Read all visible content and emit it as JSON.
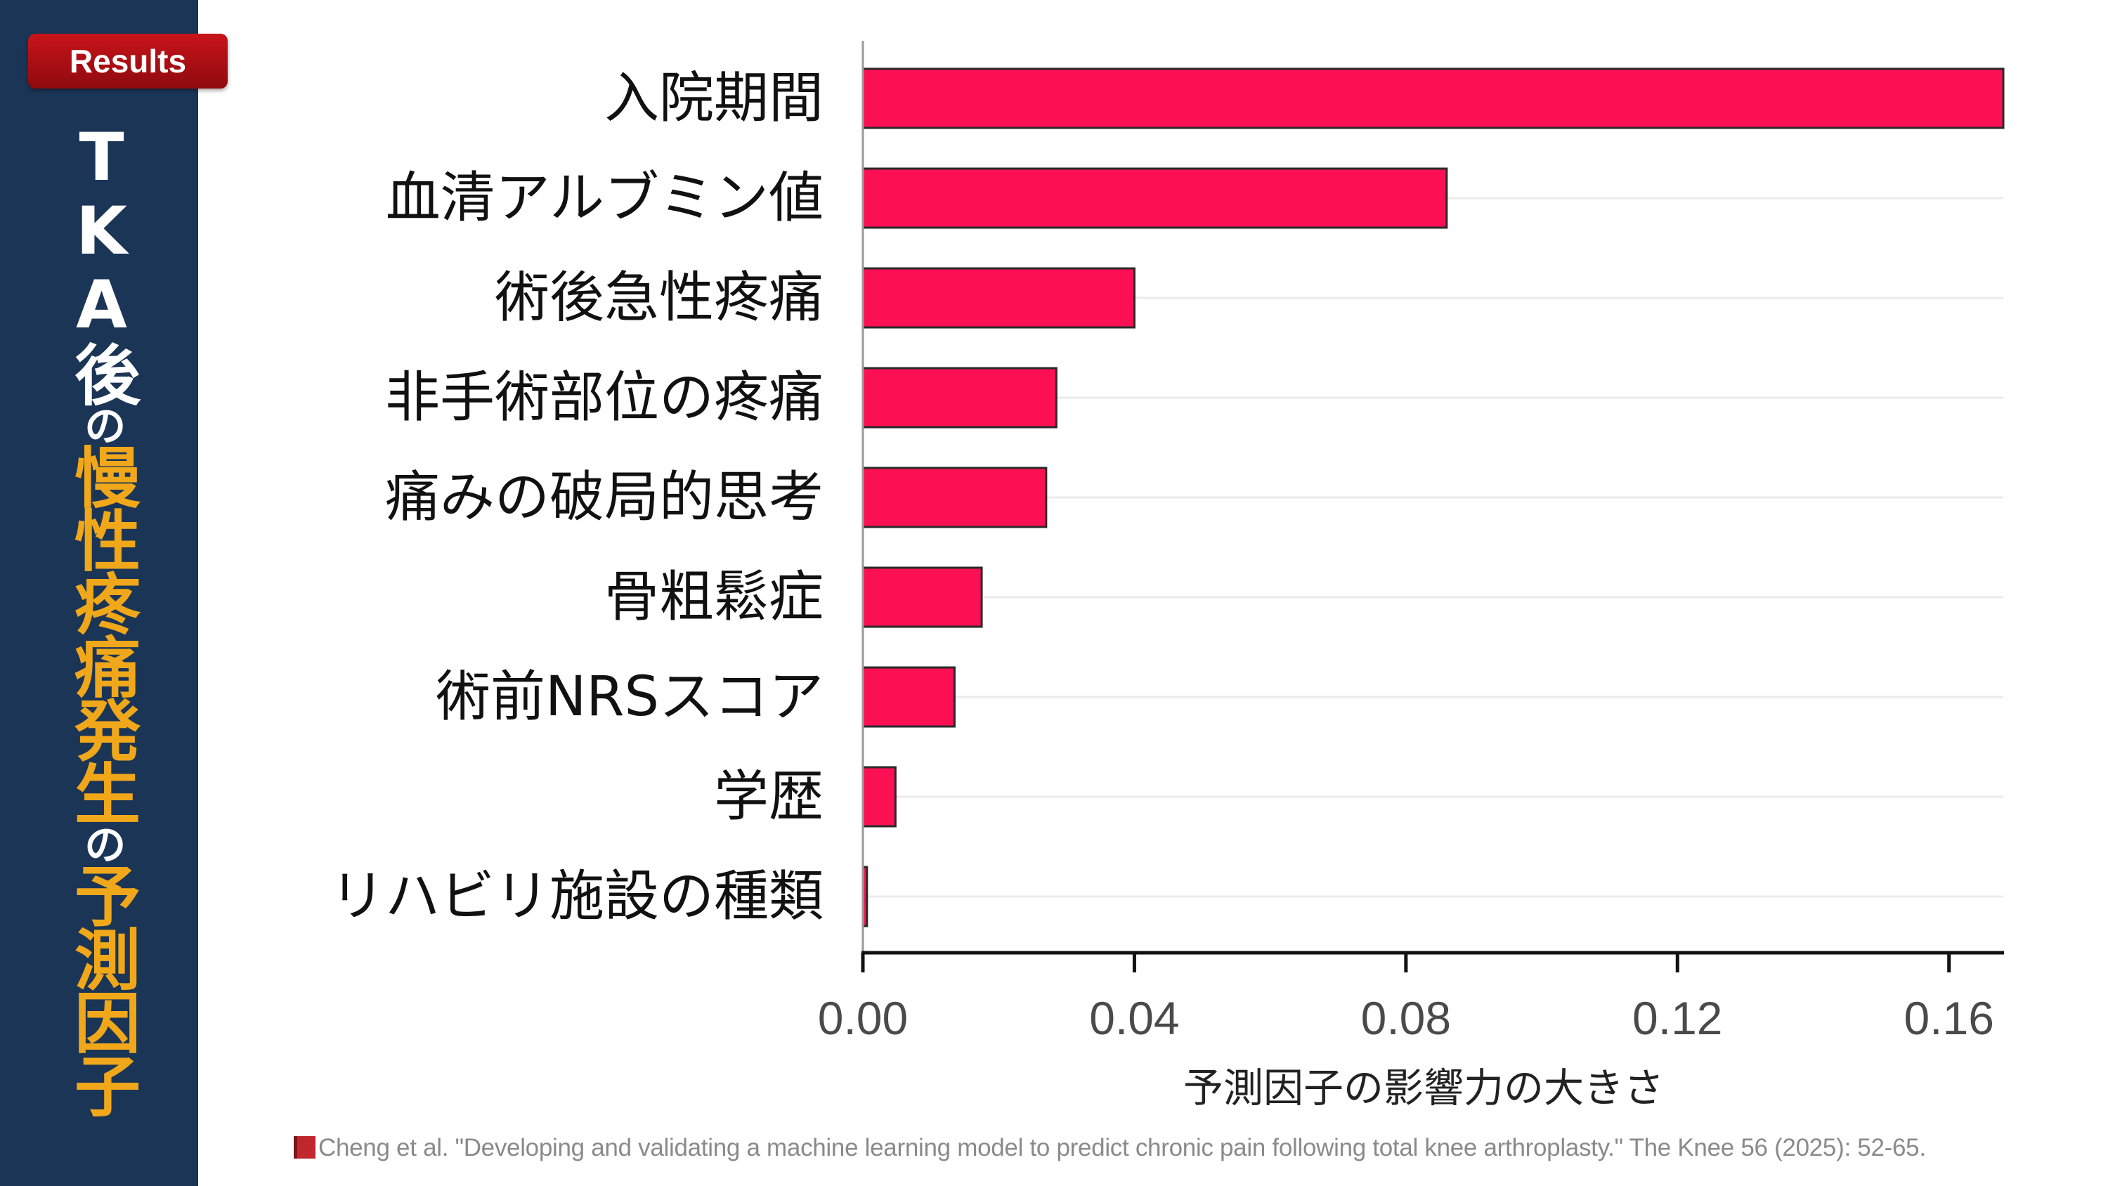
{
  "badge": {
    "label": "Results"
  },
  "title": {
    "part1": "TKA後",
    "part2": "の",
    "part3": "慢性疼痛発生",
    "part4": "の",
    "part5": "予測因子"
  },
  "colors": {
    "bar": "#fc0f53",
    "sidebar": "#1b3556",
    "accent": "#f0a81a",
    "badge": "#b01116"
  },
  "chart_data": {
    "type": "bar",
    "orientation": "horizontal",
    "categories": [
      "入院期間",
      "血清アルブミン値",
      "術後急性疼痛",
      "非手術部位の疼痛",
      "痛みの破局的思考",
      "骨粗鬆症",
      "術前NRSスコア",
      "学歴",
      "リハビリ施設の種類"
    ],
    "values": [
      0.168,
      0.086,
      0.04,
      0.0285,
      0.027,
      0.0175,
      0.0135,
      0.0048,
      0.0006
    ],
    "xlabel": "予測因子の影響力の大きさ",
    "ylabel": "",
    "xlim": [
      0,
      0.168
    ],
    "xticks": [
      "0.00",
      "0.04",
      "0.08",
      "0.12",
      "0.16"
    ],
    "grid": "horizontal"
  },
  "citation": {
    "text": "Cheng et al. \"Developing and validating a machine learning model to predict chronic pain following total knee arthroplasty.\" The Knee 56 (2025): 52-65."
  }
}
